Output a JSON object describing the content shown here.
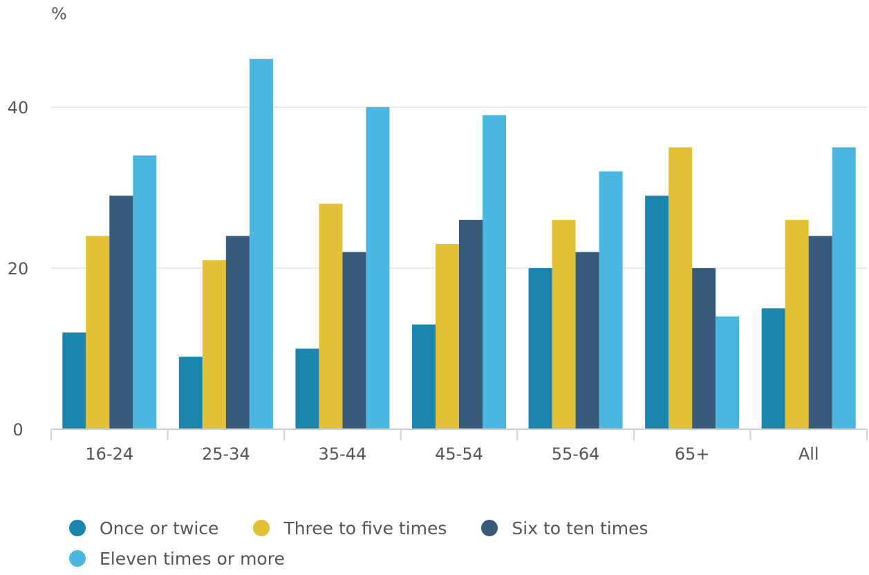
{
  "chart_data": {
    "type": "bar",
    "ylabel": "%",
    "ylim": [
      0,
      50
    ],
    "yticks": [
      0,
      20,
      40
    ],
    "grid": true,
    "legend_position": "bottom",
    "categories": [
      "16-24",
      "25-34",
      "35-44",
      "45-54",
      "55-64",
      "65+",
      "All"
    ],
    "series": [
      {
        "name": "Once or twice",
        "color": "#1b85ad",
        "values": [
          12,
          9,
          10,
          13,
          20,
          29,
          15
        ]
      },
      {
        "name": "Three to five times",
        "color": "#e2c038",
        "values": [
          24,
          21,
          28,
          23,
          26,
          35,
          26
        ]
      },
      {
        "name": "Six to ten times",
        "color": "#3a5a7c",
        "values": [
          29,
          24,
          22,
          26,
          22,
          20,
          24
        ]
      },
      {
        "name": "Eleven times or more",
        "color": "#4bb6df",
        "values": [
          34,
          46,
          40,
          39,
          32,
          14,
          35
        ]
      }
    ]
  }
}
